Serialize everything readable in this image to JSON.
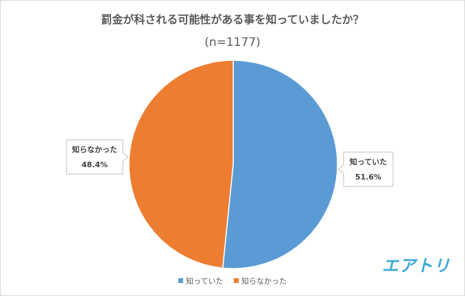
{
  "chart_data": {
    "type": "pie",
    "title": "罰金が科される可能性がある事を知っていましたか？",
    "subtitle": "(n=1177)",
    "slices": [
      {
        "label": "知っていた",
        "value": 51.6,
        "value_label": "51.6%",
        "color": "#5b9bd5"
      },
      {
        "label": "知らなかった",
        "value": 48.4,
        "value_label": "48.4%",
        "color": "#ed7d31"
      }
    ],
    "start": "12 o'clock, clockwise",
    "legend_position": "bottom"
  },
  "legend": [
    {
      "label": "知っていた",
      "color": "#5b9bd5"
    },
    {
      "label": "知らなかった",
      "color": "#ed7d31"
    }
  ],
  "logo": "エアトリ",
  "logo_color": "#3aaad8"
}
